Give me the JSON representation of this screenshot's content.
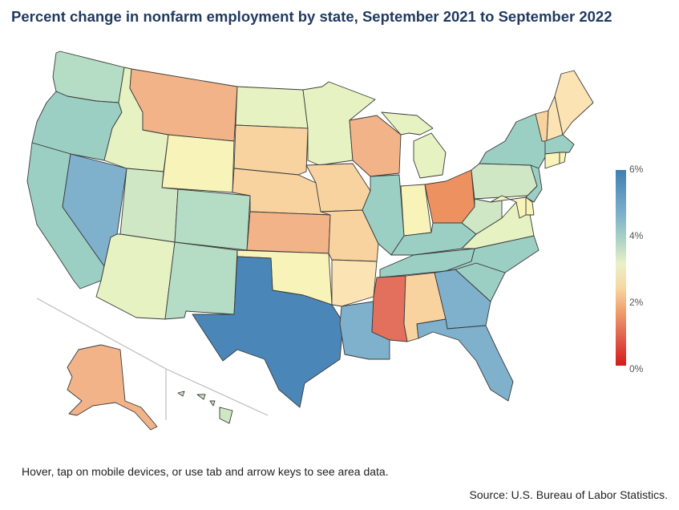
{
  "title": "Percent change in nonfarm employment by state, September 2021 to September 2022",
  "legend": {
    "ticks": [
      "6%",
      "4%",
      "2%",
      "0%"
    ],
    "colors": [
      "#3f7fb3",
      "#a9d2c4",
      "#f7d8a3",
      "#d7191c"
    ]
  },
  "hint": "Hover, tap on mobile devices, or use tab and arrow keys to see area data.",
  "source": "Source: U.S. Bureau of Labor Statistics.",
  "palette": {
    "blue_dark": "#4a86b8",
    "blue_mid": "#7fb1cc",
    "teal": "#9ccfc4",
    "teal_light": "#b5dcc4",
    "green_light": "#cfe7c5",
    "yellow_green": "#e6f2c2",
    "yellow": "#f8f3b8",
    "peach_light": "#fbe3b4",
    "peach": "#f8d3a0",
    "orange": "#f2b389",
    "orange_dark": "#ee9160",
    "red": "#e3705d"
  },
  "states": [
    {
      "id": "WA",
      "fill": "teal_light"
    },
    {
      "id": "OR",
      "fill": "teal"
    },
    {
      "id": "CA",
      "fill": "teal"
    },
    {
      "id": "NV",
      "fill": "blue_mid"
    },
    {
      "id": "ID",
      "fill": "yellow_green"
    },
    {
      "id": "MT",
      "fill": "orange"
    },
    {
      "id": "WY",
      "fill": "yellow"
    },
    {
      "id": "UT",
      "fill": "green_light"
    },
    {
      "id": "AZ",
      "fill": "yellow_green"
    },
    {
      "id": "CO",
      "fill": "teal_light"
    },
    {
      "id": "NM",
      "fill": "teal_light"
    },
    {
      "id": "ND",
      "fill": "yellow_green"
    },
    {
      "id": "SD",
      "fill": "peach"
    },
    {
      "id": "NE",
      "fill": "peach"
    },
    {
      "id": "KS",
      "fill": "orange"
    },
    {
      "id": "OK",
      "fill": "yellow"
    },
    {
      "id": "TX",
      "fill": "blue_dark"
    },
    {
      "id": "MN",
      "fill": "yellow_green"
    },
    {
      "id": "IA",
      "fill": "peach"
    },
    {
      "id": "MO",
      "fill": "peach"
    },
    {
      "id": "AR",
      "fill": "peach_light"
    },
    {
      "id": "LA",
      "fill": "blue_mid"
    },
    {
      "id": "WI",
      "fill": "orange"
    },
    {
      "id": "IL",
      "fill": "teal"
    },
    {
      "id": "MI",
      "fill": "yellow_green"
    },
    {
      "id": "IN",
      "fill": "yellow"
    },
    {
      "id": "OH",
      "fill": "orange_dark"
    },
    {
      "id": "KY",
      "fill": "teal"
    },
    {
      "id": "TN",
      "fill": "teal"
    },
    {
      "id": "MS",
      "fill": "red"
    },
    {
      "id": "AL",
      "fill": "peach"
    },
    {
      "id": "GA",
      "fill": "blue_mid"
    },
    {
      "id": "FL",
      "fill": "blue_mid"
    },
    {
      "id": "SC",
      "fill": "teal"
    },
    {
      "id": "NC",
      "fill": "teal"
    },
    {
      "id": "VA",
      "fill": "yellow_green"
    },
    {
      "id": "WV",
      "fill": "green_light"
    },
    {
      "id": "PA",
      "fill": "green_light"
    },
    {
      "id": "NY",
      "fill": "teal"
    },
    {
      "id": "NJ",
      "fill": "teal"
    },
    {
      "id": "DE",
      "fill": "yellow"
    },
    {
      "id": "MD",
      "fill": "yellow"
    },
    {
      "id": "VT",
      "fill": "peach"
    },
    {
      "id": "NH",
      "fill": "peach_light"
    },
    {
      "id": "ME",
      "fill": "peach_light"
    },
    {
      "id": "MA",
      "fill": "teal"
    },
    {
      "id": "CT",
      "fill": "yellow"
    },
    {
      "id": "RI",
      "fill": "yellow"
    },
    {
      "id": "AK",
      "fill": "orange"
    },
    {
      "id": "HI",
      "fill": "green_light"
    }
  ]
}
